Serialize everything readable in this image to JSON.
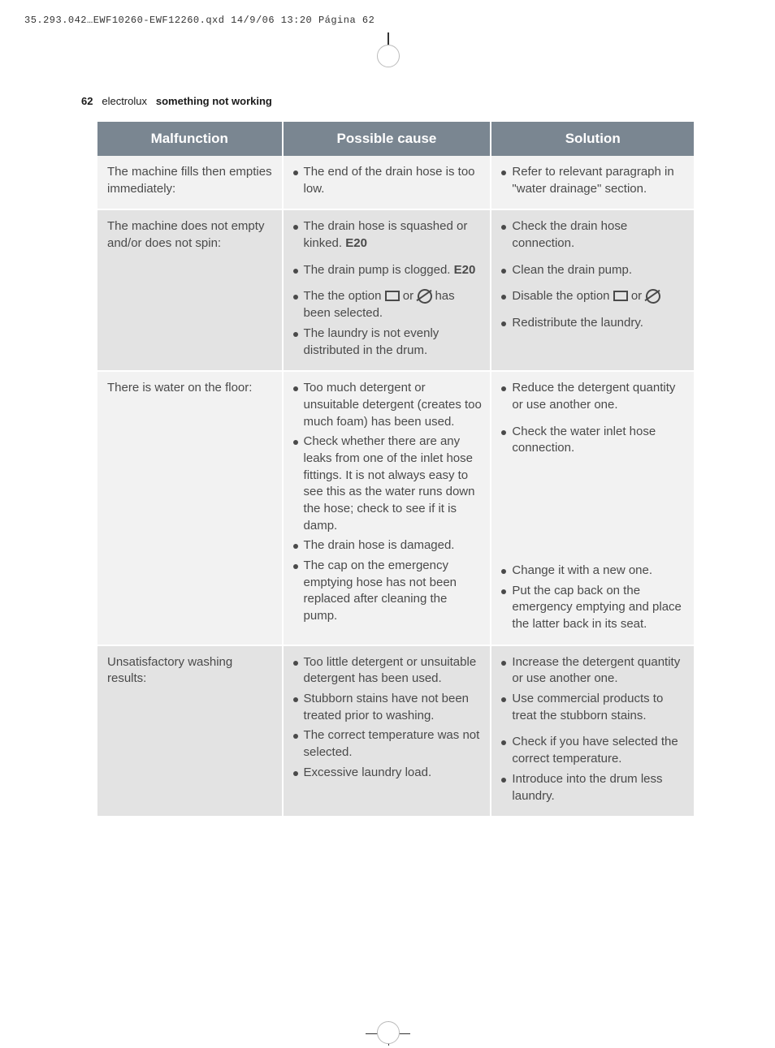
{
  "topline": "35.293.042…EWF10260-EWF12260.qxd  14/9/06  13:20  Página 62",
  "header": {
    "page_num": "62",
    "brand": "electrolux",
    "section": "something not working"
  },
  "table": {
    "head": [
      "Malfunction",
      "Possible cause",
      "Solution"
    ],
    "rows": [
      {
        "shade": "lt",
        "malfunction": "The machine fills then empties immediately:",
        "cause": [
          {
            "text": "The end of the drain hose is too low."
          }
        ],
        "solution": [
          {
            "text": "Refer to relevant paragraph in \"water drainage\" section."
          }
        ]
      },
      {
        "shade": "dk",
        "malfunction": "The machine does not empty and/or does not spin:",
        "cause": [
          {
            "text_pre": "The drain hose is squashed or kinked. ",
            "bold": "E20"
          },
          {
            "spaced": true,
            "text_pre": "The drain pump is clogged. ",
            "bold": "E20"
          },
          {
            "spaced": true,
            "option_line": true,
            "prefix": "The the option ",
            "suffix": " has been selected."
          },
          {
            "text": "The laundry is not evenly distributed in the drum."
          }
        ],
        "solution": [
          {
            "text": "Check the drain hose connection."
          },
          {
            "spaced": true,
            "text": "Clean the drain pump."
          },
          {
            "spaced": true,
            "option_line": true,
            "prefix": "Disable the option ",
            "suffix": ""
          },
          {
            "spaced": true,
            "text": "Redistribute the laundry."
          }
        ]
      },
      {
        "shade": "lt",
        "malfunction": "There is water on the floor:",
        "cause": [
          {
            "text": "Too much detergent or unsuitable detergent (creates too much foam) has been used."
          },
          {
            "text": "Check whether there are any leaks from one of the inlet hose fittings. It is not always easy to see this as the water runs down the hose; check to see if it is damp."
          },
          {
            "text": "The drain hose is damaged."
          },
          {
            "text": "The cap on the emergency emptying hose has not been replaced after cleaning the pump."
          }
        ],
        "solution": [
          {
            "text": "Reduce the detergent quantity or use another one."
          },
          {
            "spaced": true,
            "text": "Check the water inlet hose connection."
          },
          {
            "bigspace": true,
            "text": "Change it with a new one."
          },
          {
            "text": "Put the cap back on the emergency emptying and place the latter back in its seat."
          }
        ]
      },
      {
        "shade": "dk",
        "malfunction": "Unsatisfactory washing results:",
        "cause": [
          {
            "text": "Too little detergent or unsuitable detergent has been used."
          },
          {
            "text": "Stubborn stains have not been treated prior to washing."
          },
          {
            "text": "The correct temperature was not selected."
          },
          {
            "text": "Excessive laundry load."
          }
        ],
        "solution": [
          {
            "text": "Increase the detergent quantity or use another one."
          },
          {
            "text": "Use commercial products to treat the stubborn stains."
          },
          {
            "spaced": true,
            "text": "Check if you have selected the correct temperature."
          },
          {
            "text": "Introduce into the drum less laundry."
          }
        ]
      }
    ]
  }
}
